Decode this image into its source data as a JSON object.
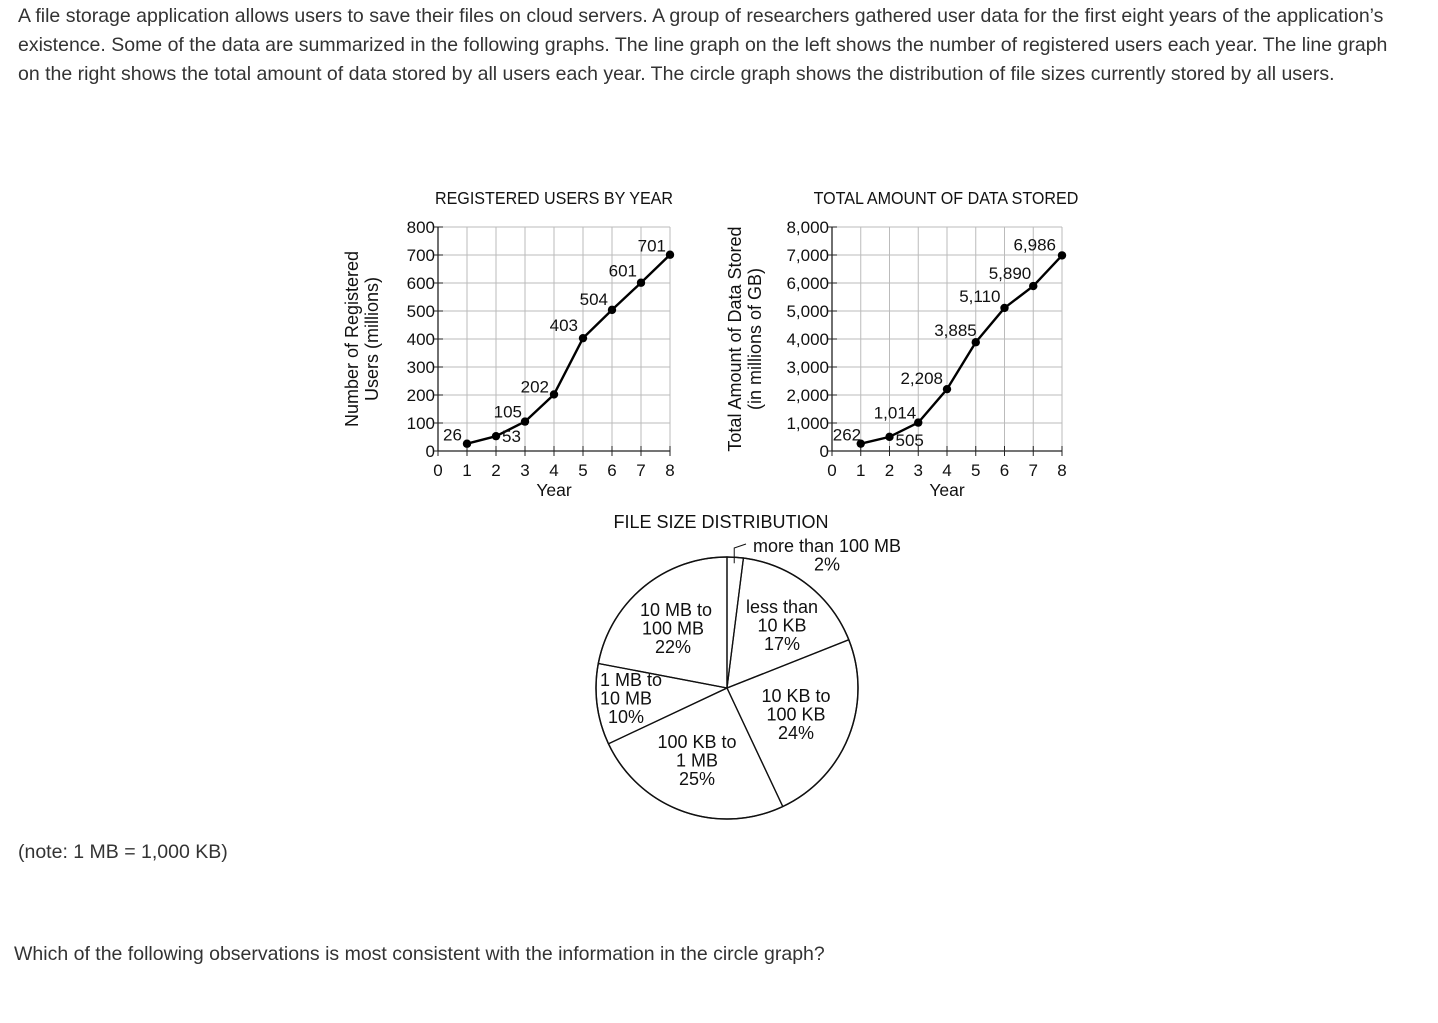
{
  "intro_text": "A file storage application allows users to save their files on cloud servers. A group of researchers gathered user data for the first eight years of the application’s existence. Some of the data are summarized in the following graphs. The line graph on the left shows the number of registered users each year. The line graph on the right shows the total amount of data stored by all users each year. The circle graph shows the distribution of file sizes currently stored by all users.",
  "note_text": "(note: 1 MB = 1,000 KB)",
  "question_text": "Which of the following observations is most consistent with the information in the circle graph?",
  "chart_data": [
    {
      "type": "line",
      "title": "REGISTERED USERS BY YEAR",
      "xlabel": "Year",
      "ylabel": [
        "Number of Registered",
        "Users (millions)"
      ],
      "x": [
        1,
        2,
        3,
        4,
        5,
        6,
        7,
        8
      ],
      "x_ticks": [
        "0",
        "1",
        "2",
        "3",
        "4",
        "5",
        "6",
        "7",
        "8"
      ],
      "y_ticks": [
        "0",
        "100",
        "200",
        "300",
        "400",
        "500",
        "600",
        "700",
        "800"
      ],
      "xlim": [
        0,
        8
      ],
      "ylim": [
        0,
        800
      ],
      "values": [
        26,
        53,
        105,
        202,
        403,
        504,
        601,
        701
      ],
      "data_labels": [
        "26",
        "53",
        "105",
        "202",
        "403",
        "504",
        "601",
        "701"
      ],
      "grid": true
    },
    {
      "type": "line",
      "title": "TOTAL AMOUNT OF DATA STORED",
      "xlabel": "Year",
      "ylabel": [
        "Total Amount of Data Stored",
        "(in millions of GB)"
      ],
      "x": [
        1,
        2,
        3,
        4,
        5,
        6,
        7,
        8
      ],
      "x_ticks": [
        "0",
        "1",
        "2",
        "3",
        "4",
        "5",
        "6",
        "7",
        "8"
      ],
      "y_ticks": [
        "0",
        "1,000",
        "2,000",
        "3,000",
        "4,000",
        "5,000",
        "6,000",
        "7,000",
        "8,000"
      ],
      "xlim": [
        0,
        8
      ],
      "ylim": [
        0,
        8000
      ],
      "values": [
        262,
        505,
        1014,
        2208,
        3885,
        5110,
        5890,
        6986
      ],
      "data_labels": [
        "262",
        "505",
        "1,014",
        "2,208",
        "3,885",
        "5,110",
        "5,890",
        "6,986"
      ],
      "grid": true
    },
    {
      "type": "pie",
      "title": "FILE SIZE DISTRIBUTION",
      "slices": [
        {
          "lines": [
            "more than 100 MB",
            "2%"
          ],
          "value": 2
        },
        {
          "lines": [
            "less than",
            "10 KB",
            "17%"
          ],
          "value": 17
        },
        {
          "lines": [
            "10 KB to",
            "100 KB",
            "24%"
          ],
          "value": 24
        },
        {
          "lines": [
            "100 KB to",
            "1 MB",
            "25%"
          ],
          "value": 25
        },
        {
          "lines": [
            "1 MB to",
            "10 MB",
            "10%"
          ],
          "value": 10
        },
        {
          "lines": [
            "10 MB to",
            "100 MB",
            "22%"
          ],
          "value": 22
        }
      ]
    }
  ]
}
